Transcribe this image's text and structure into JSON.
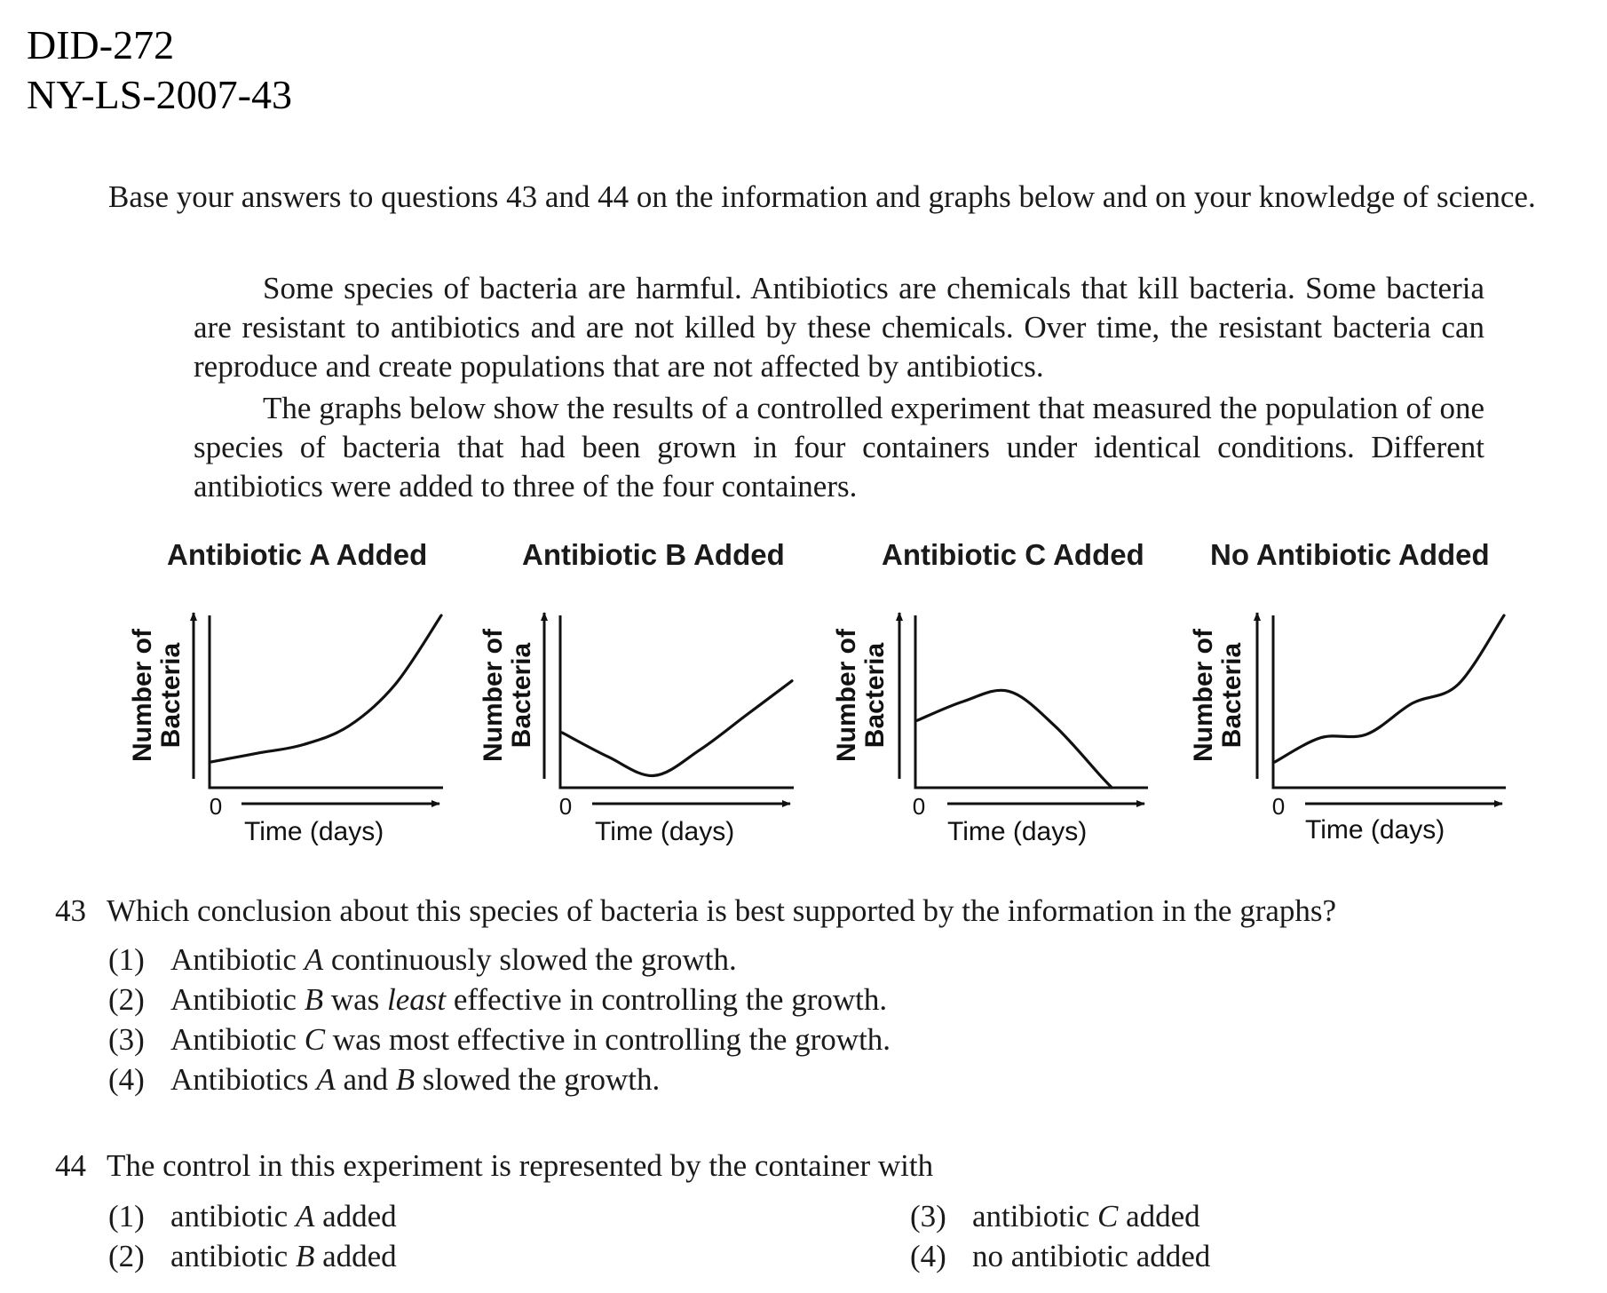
{
  "doc_ids": [
    "DID-272",
    "NY-LS-2007-43"
  ],
  "intro": "Base your answers to questions 43 and 44 on the information and graphs below and on your knowledge of science.",
  "info": [
    "Some species of bacteria are harmful. Antibiotics are chemicals that kill bacteria. Some bacteria are resistant to antibiotics and are not killed by these chemicals. Over time, the resistant bacteria can reproduce and create populations that are not affected by antibiotics.",
    "The graphs below show the results of a controlled experiment that measured the population of one species of bacteria that had been grown in four containers under identical conditions. Different antibiotics were added to three of the four containers."
  ],
  "chart_data": [
    {
      "type": "line",
      "title": "Antibiotic A Added",
      "xlabel": "Time (days)",
      "ylabel": "Number of Bacteria",
      "origin_label": "0",
      "x": [
        0,
        0.2,
        0.4,
        0.6,
        0.8,
        1.0
      ],
      "y": [
        0.15,
        0.2,
        0.25,
        0.36,
        0.6,
        1.0
      ]
    },
    {
      "type": "line",
      "title": "Antibiotic B Added",
      "xlabel": "Time (days)",
      "ylabel": "Number of Bacteria",
      "origin_label": "0",
      "x": [
        0,
        0.2,
        0.4,
        0.6,
        0.8,
        1.0
      ],
      "y": [
        0.32,
        0.18,
        0.07,
        0.22,
        0.42,
        0.62
      ]
    },
    {
      "type": "line",
      "title": "Antibiotic C Added",
      "xlabel": "Time (days)",
      "ylabel": "Number of Bacteria",
      "origin_label": "0",
      "x": [
        0,
        0.2,
        0.4,
        0.6,
        0.8,
        0.85
      ],
      "y": [
        0.39,
        0.5,
        0.56,
        0.36,
        0.07,
        0.0
      ]
    },
    {
      "type": "line",
      "title": "No Antibiotic Added",
      "xlabel": "Time (days)",
      "ylabel": "Number of Bacteria",
      "origin_label": "0",
      "x": [
        0,
        0.2,
        0.4,
        0.6,
        0.8,
        1.0
      ],
      "y": [
        0.15,
        0.29,
        0.31,
        0.49,
        0.6,
        1.0
      ]
    }
  ],
  "questions": [
    {
      "number": "43",
      "stem": "Which conclusion about this species of bacteria is best supported by the information in the graphs?",
      "choices": [
        {
          "num": "(1)",
          "text": "Antibiotic A continuously slowed the growth."
        },
        {
          "num": "(2)",
          "text": "Antibiotic B was least effective in controlling the growth."
        },
        {
          "num": "(3)",
          "text": "Antibiotic C was most effective in controlling the growth."
        },
        {
          "num": "(4)",
          "text": "Antibiotics A and B slowed the growth."
        }
      ]
    },
    {
      "number": "44",
      "stem": "The control in this experiment is represented by the container with",
      "choices": [
        {
          "num": "(1)",
          "text": "antibiotic A added"
        },
        {
          "num": "(2)",
          "text": "antibiotic B added"
        },
        {
          "num": "(3)",
          "text": "antibiotic C added"
        },
        {
          "num": "(4)",
          "text": "no antibiotic added"
        }
      ]
    }
  ]
}
